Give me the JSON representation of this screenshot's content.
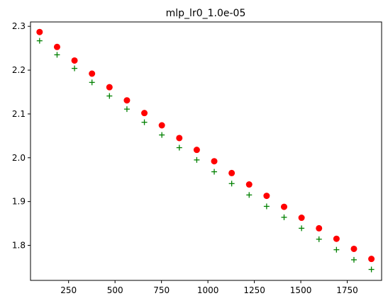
{
  "chart_data": {
    "type": "scatter",
    "title": "mlp_lr0_1.0e-05",
    "xlabel": "",
    "ylabel": "",
    "xlim": [
      45,
      1935
    ],
    "ylim": [
      1.72,
      2.31
    ],
    "x_ticks": [
      250,
      500,
      750,
      1000,
      1250,
      1500,
      1750
    ],
    "x_tick_labels": [
      "250",
      "500",
      "750",
      "1000",
      "1250",
      "1500",
      "1750"
    ],
    "y_ticks": [
      1.8,
      1.9,
      2.0,
      2.1,
      2.2,
      2.3
    ],
    "y_tick_labels": [
      "1.8",
      "1.9",
      "2.0",
      "2.1",
      "2.2",
      "2.3"
    ],
    "grid": false,
    "legend": "none",
    "x": [
      94,
      188,
      282,
      376,
      470,
      564,
      658,
      752,
      846,
      940,
      1034,
      1128,
      1222,
      1316,
      1410,
      1504,
      1598,
      1692,
      1786,
      1880
    ],
    "series": [
      {
        "marker": "circle",
        "color": "#ff0000",
        "values": [
          2.287,
          2.253,
          2.222,
          2.192,
          2.161,
          2.131,
          2.102,
          2.074,
          2.045,
          2.018,
          1.992,
          1.965,
          1.939,
          1.913,
          1.888,
          1.863,
          1.839,
          1.815,
          1.792,
          1.769
        ]
      },
      {
        "marker": "plus",
        "color": "#008000",
        "values": [
          2.267,
          2.235,
          2.204,
          2.172,
          2.141,
          2.111,
          2.081,
          2.052,
          2.023,
          1.995,
          1.968,
          1.941,
          1.915,
          1.889,
          1.864,
          1.839,
          1.814,
          1.79,
          1.767,
          1.745
        ]
      }
    ]
  }
}
